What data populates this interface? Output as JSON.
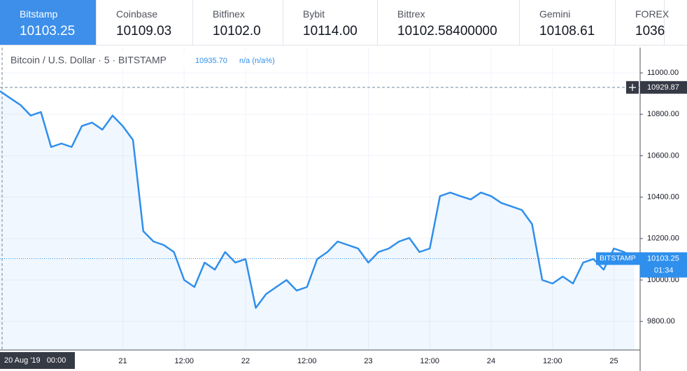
{
  "exchanges": [
    {
      "name": "Bitstamp",
      "price": "10103.25"
    },
    {
      "name": "Coinbase",
      "price": "10109.03"
    },
    {
      "name": "Bitfinex",
      "price": "10102.0"
    },
    {
      "name": "Bybit",
      "price": "10114.00"
    },
    {
      "name": "Bittrex",
      "price": "10102.58400000"
    },
    {
      "name": "Gemini",
      "price": "10108.61"
    },
    {
      "name": "FOREX",
      "price": "1036"
    }
  ],
  "chart_data": {
    "type": "line",
    "title": "Bitcoin / U.S. Dollar · 5 · BITSTAMP",
    "legend_price": "10935.70",
    "legend_change": "n/a (n/a%)",
    "categories": [
      "20 Aug '19   00:00",
      null,
      null,
      null,
      null,
      null,
      null,
      null,
      null,
      null,
      null,
      null,
      "21",
      null,
      null,
      null,
      null,
      null,
      "12:00",
      null,
      null,
      null,
      null,
      null,
      "22",
      null,
      null,
      null,
      null,
      null,
      "12:00",
      null,
      null,
      null,
      null,
      null,
      "23",
      null,
      null,
      null,
      null,
      null,
      "12:00",
      null,
      null,
      null,
      null,
      null,
      "24",
      null,
      null,
      null,
      null,
      null,
      "12:00",
      null,
      null,
      null,
      null,
      null,
      "25",
      null,
      null
    ],
    "series": [
      {
        "name": "BITSTAMP",
        "color": "#2f8fec",
        "values": [
          10912,
          10878,
          10845,
          10794,
          10811,
          10642,
          10659,
          10642,
          10743,
          10760,
          10726,
          10794,
          10743,
          10676,
          10236,
          10186,
          10169,
          10135,
          10000,
          9966,
          10084,
          10050,
          10135,
          10084,
          10101,
          9865,
          9932,
          9966,
          10000,
          9949,
          9966,
          10101,
          10135,
          10186,
          10169,
          10152,
          10084,
          10135,
          10152,
          10186,
          10203,
          10135,
          10152,
          10405,
          10422,
          10405,
          10389,
          10422,
          10405,
          10372,
          10355,
          10338,
          10270,
          10000,
          9983,
          10017,
          9983,
          10084,
          10101,
          10050,
          10152,
          10135,
          10103.25
        ]
      }
    ],
    "ylim": [
      9662,
      11122
    ],
    "yticks": [
      {
        "value": 9800,
        "label": "9800.00"
      },
      {
        "value": 10000,
        "label": "10000.00"
      },
      {
        "value": 10200,
        "label": "10200.00"
      },
      {
        "value": 10400,
        "label": "10400.00"
      },
      {
        "value": 10600,
        "label": "10600.00"
      },
      {
        "value": 10800,
        "label": "10800.00"
      },
      {
        "value": 11000,
        "label": "11000.00"
      }
    ],
    "grid": true,
    "crosshair_price": 10929.87,
    "countdown": "01:34"
  }
}
